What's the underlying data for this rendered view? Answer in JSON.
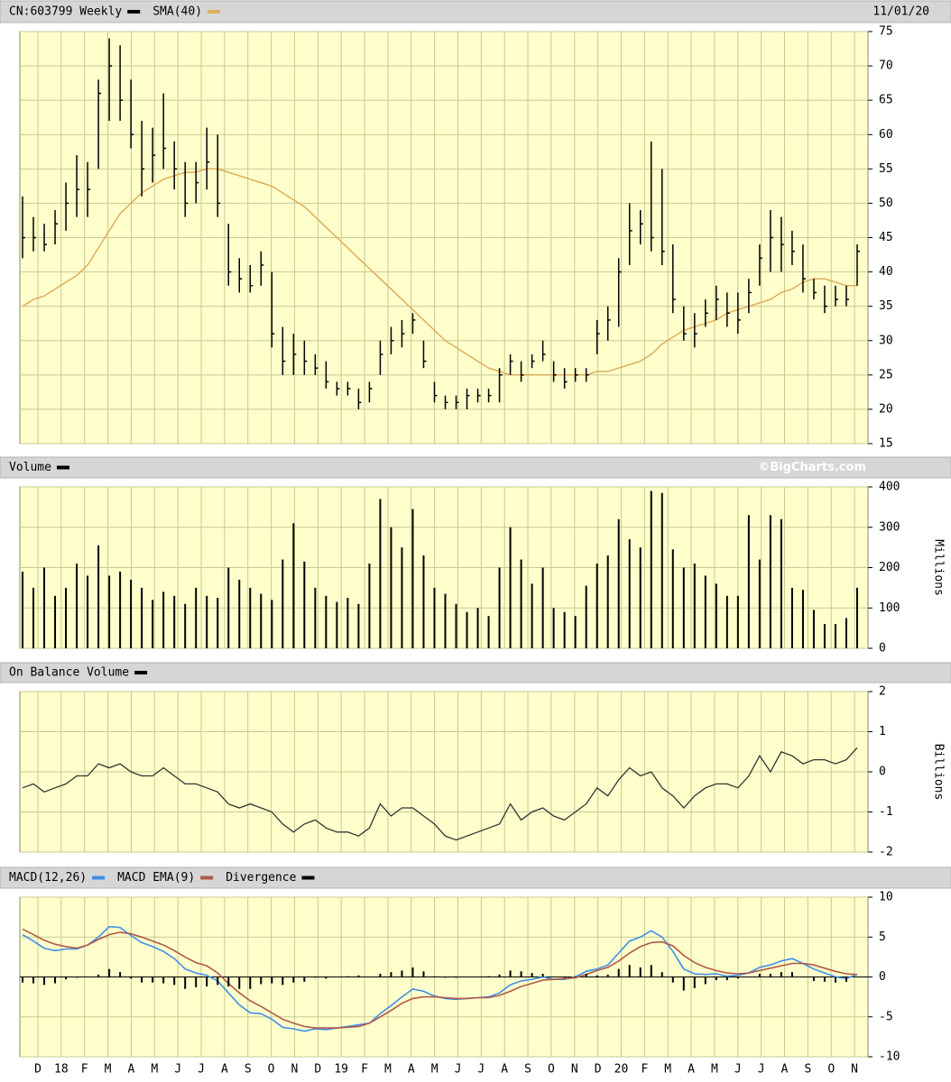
{
  "chart_data": [
    {
      "type": "hlc",
      "title": "CN:603799 Weekly",
      "date": "11/01/20",
      "color": "#000000",
      "high": [
        51,
        48,
        47,
        49,
        53,
        57,
        56,
        68,
        74,
        73,
        68,
        62,
        61,
        66,
        59,
        56,
        56,
        61,
        60,
        47,
        42,
        41,
        43,
        40,
        32,
        31,
        30,
        28,
        27,
        24,
        24,
        23,
        24,
        30,
        32,
        33,
        34,
        30,
        24,
        22,
        22,
        23,
        23,
        23,
        26,
        28,
        27,
        28,
        30,
        27,
        26,
        26,
        26,
        33,
        35,
        42,
        50,
        49,
        59,
        55,
        44,
        35,
        34,
        36,
        38,
        37,
        37,
        39,
        44,
        49,
        48,
        46,
        44,
        39,
        38,
        38,
        38,
        44
      ],
      "low": [
        42,
        43,
        43,
        44,
        46,
        48,
        48,
        55,
        62,
        62,
        58,
        51,
        53,
        55,
        52,
        48,
        50,
        52,
        48,
        38,
        37,
        37,
        38,
        29,
        25,
        25,
        25,
        25,
        23,
        22,
        22,
        20,
        21,
        25,
        28,
        29,
        31,
        26,
        21,
        20,
        20,
        20,
        21,
        21,
        21,
        25,
        24,
        26,
        27,
        24,
        23,
        24,
        24,
        28,
        30,
        32,
        41,
        44,
        43,
        41,
        34,
        30,
        29,
        32,
        33,
        32,
        31,
        34,
        38,
        40,
        40,
        41,
        37,
        36,
        34,
        35,
        35,
        38
      ],
      "close": [
        45,
        45,
        44,
        47,
        50,
        52,
        52,
        66,
        70,
        65,
        60,
        55,
        57,
        58,
        55,
        50,
        53,
        56,
        50,
        40,
        39,
        38,
        41,
        31,
        27,
        28,
        27,
        26,
        24,
        23,
        23,
        21,
        23,
        28,
        30,
        31,
        33,
        27,
        22,
        21,
        21,
        22,
        22,
        22,
        25,
        27,
        25,
        27,
        28,
        25,
        24,
        25,
        25,
        31,
        33,
        40,
        46,
        47,
        45,
        43,
        36,
        31,
        31,
        34,
        36,
        34,
        33,
        37,
        42,
        45,
        44,
        43,
        39,
        37,
        35,
        36,
        36,
        43
      ],
      "sma": {
        "name": "SMA(40)",
        "color": "#dcae5c",
        "values": [
          35,
          36,
          36.5,
          37.5,
          38.5,
          39.5,
          41,
          43.5,
          46,
          48.5,
          50,
          51.5,
          52.5,
          53.5,
          54,
          54.5,
          54.5,
          55,
          55,
          54.5,
          54,
          53.5,
          53,
          52.5,
          51.5,
          50.5,
          49.5,
          48,
          46.5,
          45,
          43.5,
          42,
          40.5,
          39,
          37.5,
          36,
          34.5,
          33,
          31.5,
          30,
          29,
          28,
          27,
          26,
          25.5,
          25,
          25,
          25,
          25,
          25,
          25,
          25,
          25,
          25.5,
          25.5,
          26,
          26.5,
          27,
          28,
          29.5,
          30.5,
          31.5,
          32,
          32.5,
          33,
          34,
          34.5,
          35,
          35.5,
          36,
          37,
          37.5,
          38.5,
          39,
          39,
          38.5,
          38,
          38
        ]
      },
      "ylim": [
        15,
        75
      ],
      "yticks": [
        15,
        20,
        25,
        30,
        35,
        40,
        45,
        50,
        55,
        60,
        65,
        70,
        75
      ]
    },
    {
      "type": "bar",
      "title": "Volume",
      "credit": "©BigCharts.com",
      "color": "#000000",
      "y_label": "Millions",
      "values": [
        190,
        150,
        200,
        130,
        150,
        210,
        180,
        255,
        180,
        190,
        170,
        150,
        120,
        140,
        130,
        110,
        150,
        130,
        125,
        200,
        170,
        150,
        135,
        120,
        220,
        310,
        215,
        150,
        130,
        115,
        125,
        110,
        210,
        370,
        300,
        250,
        345,
        230,
        150,
        135,
        110,
        90,
        100,
        80,
        200,
        300,
        220,
        160,
        200,
        100,
        90,
        80,
        155,
        210,
        230,
        320,
        270,
        250,
        390,
        385,
        245,
        200,
        210,
        180,
        160,
        130,
        130,
        330,
        220,
        330,
        320,
        150,
        145,
        95,
        60,
        60,
        75,
        150
      ],
      "ylim": [
        0,
        400
      ],
      "yticks": [
        0,
        100,
        200,
        300,
        400
      ]
    },
    {
      "type": "line",
      "title": "On Balance Volume",
      "color": "#333333",
      "y_label": "Billions",
      "values": [
        -0.4,
        -0.3,
        -0.5,
        -0.4,
        -0.3,
        -0.1,
        -0.1,
        0.2,
        0.1,
        0.2,
        0,
        -0.1,
        -0.1,
        0.1,
        -0.1,
        -0.3,
        -0.3,
        -0.4,
        -0.5,
        -0.8,
        -0.9,
        -0.8,
        -0.9,
        -1.0,
        -1.3,
        -1.5,
        -1.3,
        -1.2,
        -1.4,
        -1.5,
        -1.5,
        -1.6,
        -1.4,
        -0.8,
        -1.1,
        -0.9,
        -0.9,
        -1.1,
        -1.3,
        -1.6,
        -1.7,
        -1.6,
        -1.5,
        -1.4,
        -1.3,
        -0.8,
        -1.2,
        -1.0,
        -0.9,
        -1.1,
        -1.2,
        -1.0,
        -0.8,
        -0.4,
        -0.6,
        -0.2,
        0.1,
        -0.1,
        0,
        -0.4,
        -0.6,
        -0.9,
        -0.6,
        -0.4,
        -0.3,
        -0.3,
        -0.4,
        -0.1,
        0.4,
        0,
        0.5,
        0.4,
        0.2,
        0.3,
        0.3,
        0.2,
        0.3,
        0.6
      ],
      "ylim": [
        -2,
        2
      ],
      "yticks": [
        -2,
        -1,
        0,
        1,
        2
      ]
    },
    {
      "type": "macd",
      "series": [
        {
          "name": "MACD(12,26)",
          "color": "#3f8fe8",
          "values": [
            5.3,
            4.5,
            3.6,
            3.3,
            3.5,
            3.5,
            4.0,
            5.0,
            6.3,
            6.2,
            5.2,
            4.3,
            3.8,
            3.2,
            2.3,
            1.0,
            0.5,
            0.2,
            -0.5,
            -2.0,
            -3.5,
            -4.5,
            -4.6,
            -5.3,
            -6.3,
            -6.5,
            -6.8,
            -6.5,
            -6.6,
            -6.4,
            -6.2,
            -6.0,
            -5.8,
            -4.6,
            -3.6,
            -2.5,
            -1.5,
            -1.8,
            -2.4,
            -2.7,
            -2.8,
            -2.7,
            -2.6,
            -2.5,
            -2.0,
            -1.0,
            -0.5,
            -0.3,
            0,
            -0.3,
            -0.3,
            0,
            0.7,
            1.0,
            1.5,
            3.0,
            4.5,
            5.0,
            5.8,
            5.0,
            3.2,
            1.0,
            0.4,
            0.3,
            0.4,
            0.1,
            0.2,
            0.5,
            1.2,
            1.5,
            2.0,
            2.3,
            1.7,
            1.0,
            0.5,
            0,
            -0.2,
            0.3
          ]
        },
        {
          "name": "MACD EMA(9)",
          "color": "#b05848",
          "values": [
            6,
            5.3,
            4.6,
            4.1,
            3.8,
            3.6,
            4.0,
            4.7,
            5.3,
            5.6,
            5.4,
            5.0,
            4.5,
            4.0,
            3.3,
            2.5,
            1.8,
            1.4,
            0.5,
            -0.8,
            -2.0,
            -3.0,
            -3.7,
            -4.5,
            -5.3,
            -5.8,
            -6.2,
            -6.4,
            -6.4,
            -6.4,
            -6.3,
            -6.2,
            -5.8,
            -5.0,
            -4.2,
            -3.3,
            -2.7,
            -2.5,
            -2.5,
            -2.6,
            -2.7,
            -2.7,
            -2.6,
            -2.6,
            -2.3,
            -1.8,
            -1.2,
            -0.8,
            -0.4,
            -0.3,
            -0.2,
            -0.1,
            0.3,
            0.8,
            1.2,
            2.0,
            3.0,
            3.8,
            4.3,
            4.4,
            3.9,
            2.7,
            1.8,
            1.2,
            0.8,
            0.5,
            0.4,
            0.5,
            0.8,
            1.1,
            1.4,
            1.7,
            1.7,
            1.5,
            1.1,
            0.7,
            0.4,
            0.3
          ]
        },
        {
          "name": "Divergence",
          "color": "#000000",
          "values": [
            -0.7,
            -0.8,
            -1.0,
            -0.8,
            -0.3,
            -0.1,
            0,
            0.3,
            1.0,
            0.6,
            -0.2,
            -0.7,
            -0.7,
            -0.8,
            -1.0,
            -1.5,
            -1.3,
            -1.2,
            -1.0,
            -1.2,
            -1.5,
            -1.5,
            -0.9,
            -0.8,
            -1.0,
            -0.7,
            -0.6,
            -0.1,
            -0.2,
            0,
            0.1,
            0.2,
            0,
            0.4,
            0.6,
            0.8,
            1.2,
            0.7,
            0.1,
            -0.1,
            -0.1,
            0,
            0,
            0.1,
            0.3,
            0.8,
            0.7,
            0.5,
            0.4,
            0,
            -0.1,
            0.1,
            0.4,
            0.2,
            0.3,
            1.0,
            1.5,
            1.2,
            1.5,
            0.6,
            -0.7,
            -1.7,
            -1.4,
            -0.9,
            -0.4,
            -0.4,
            -0.2,
            0,
            0.4,
            0.4,
            0.6,
            0.6,
            0,
            -0.5,
            -0.6,
            -0.7,
            -0.6,
            0
          ]
        }
      ],
      "ylim": [
        -10,
        10
      ],
      "yticks": [
        -10,
        -5,
        0,
        5,
        10
      ],
      "x_labels": [
        "D",
        "18",
        "F",
        "M",
        "A",
        "M",
        "J",
        "J",
        "A",
        "S",
        "O",
        "N",
        "D",
        "19",
        "F",
        "M",
        "A",
        "M",
        "J",
        "J",
        "A",
        "S",
        "O",
        "N",
        "D",
        "20",
        "F",
        "M",
        "A",
        "M",
        "J",
        "J",
        "A",
        "S",
        "O",
        "N"
      ]
    }
  ]
}
